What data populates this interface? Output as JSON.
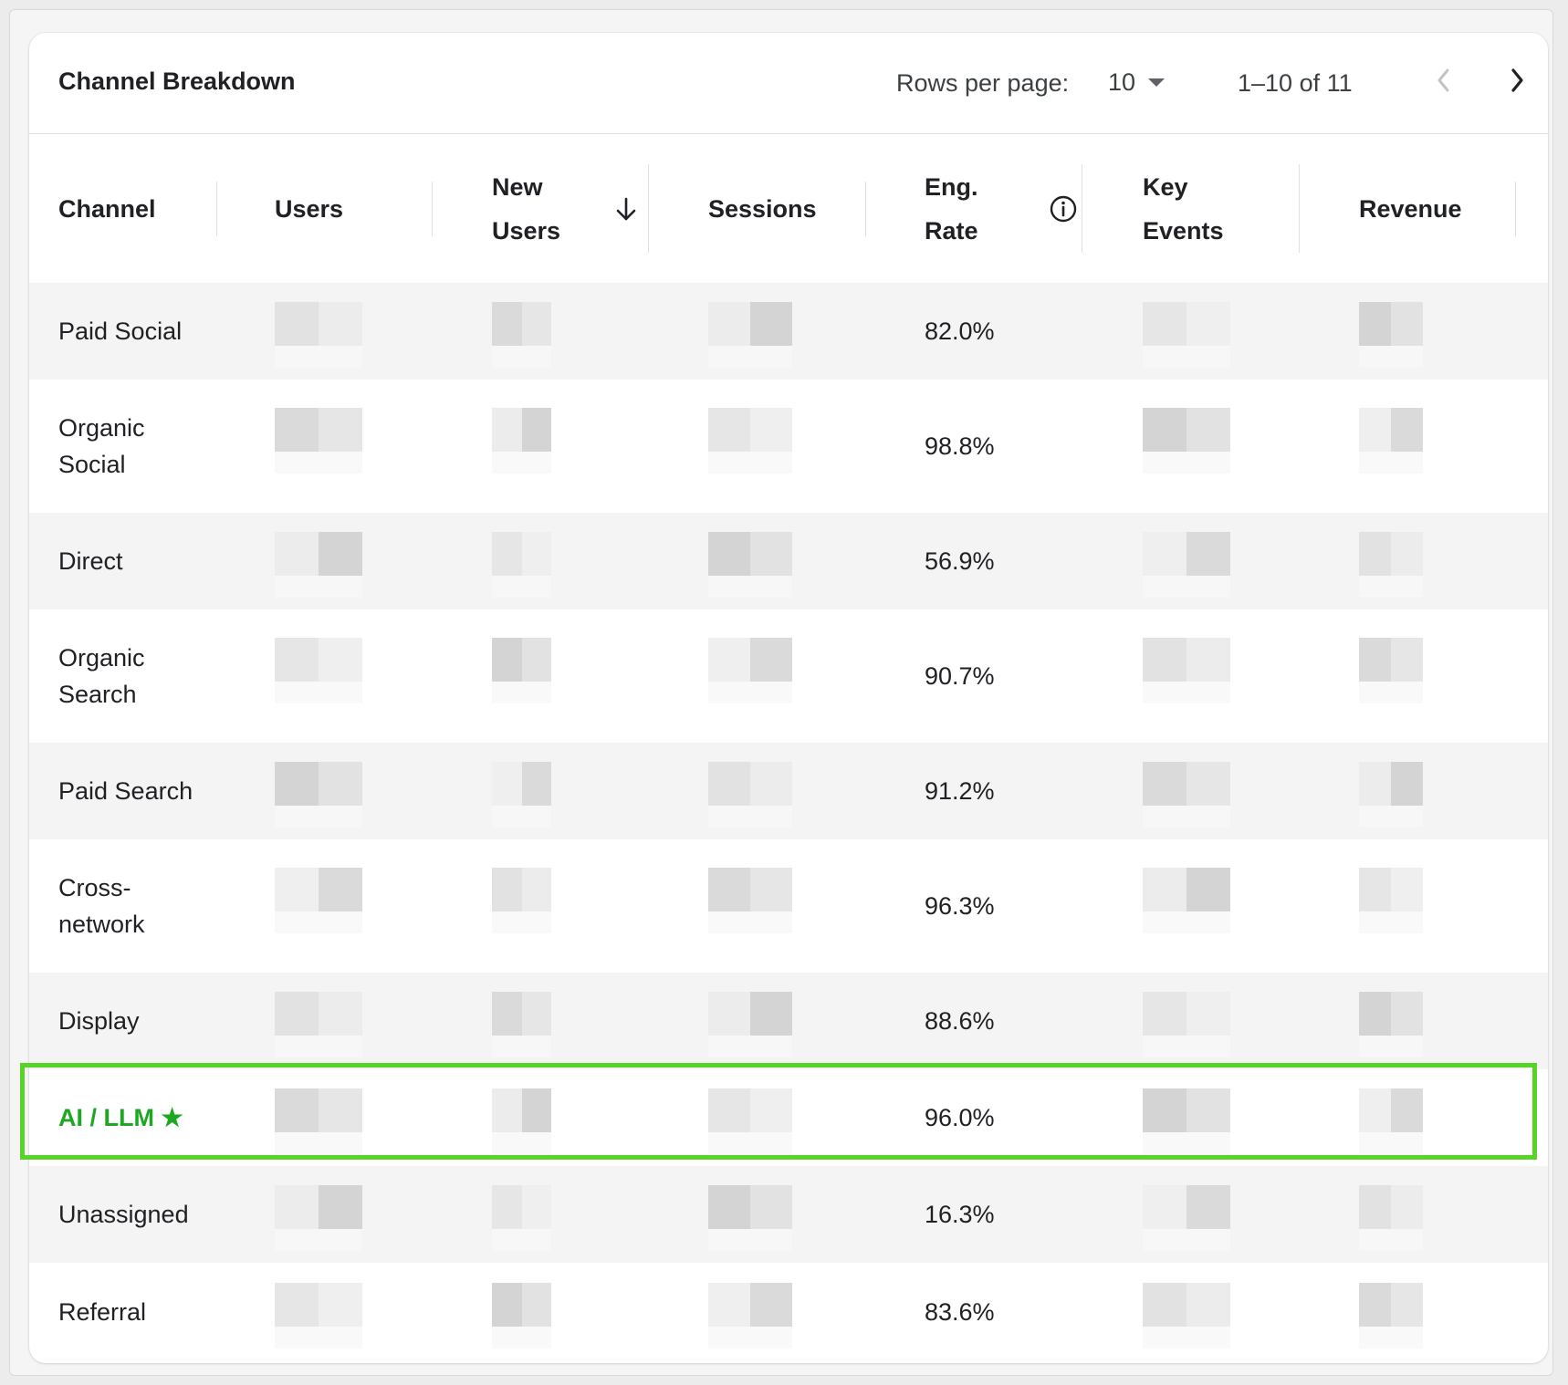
{
  "card": {
    "title": "Channel Breakdown"
  },
  "pagination": {
    "rows_per_page_label": "Rows per page:",
    "rows_per_page_value": "10",
    "range_label": "1–10 of 11"
  },
  "columns": {
    "channel": "Channel",
    "users": "Users",
    "new_users_line1": "New",
    "new_users_line2": "Users",
    "sessions": "Sessions",
    "eng_rate_line1": "Eng.",
    "eng_rate_line2": "Rate",
    "key_events_line1": "Key",
    "key_events_line2": "Events",
    "revenue": "Revenue"
  },
  "sort": {
    "column": "New Users",
    "direction": "descending"
  },
  "rows": [
    {
      "channel": "Paid Social",
      "eng_rate": "82.0%"
    },
    {
      "channel_line1": "Organic",
      "channel_line2": "Social",
      "eng_rate": "98.8%"
    },
    {
      "channel": "Direct",
      "eng_rate": "56.9%"
    },
    {
      "channel_line1": "Organic",
      "channel_line2": "Search",
      "eng_rate": "90.7%"
    },
    {
      "channel": "Paid Search",
      "eng_rate": "91.2%"
    },
    {
      "channel_line1": "Cross-",
      "channel_line2": "network",
      "eng_rate": "96.3%"
    },
    {
      "channel": "Display",
      "eng_rate": "88.6%"
    },
    {
      "channel": "AI / LLM ★",
      "eng_rate": "96.0%",
      "highlighted": true
    },
    {
      "channel": "Unassigned",
      "eng_rate": "16.3%"
    },
    {
      "channel": "Referral",
      "eng_rate": "83.6%"
    }
  ],
  "colors": {
    "highlight_border": "#57d425",
    "highlight_text": "#1da722",
    "row_stripe": "#f4f4f4"
  },
  "icons": {
    "sort": "arrow-down-icon",
    "info": "info-icon",
    "caret": "caret-down-icon",
    "prev": "chevron-left-icon",
    "next": "chevron-right-icon"
  }
}
